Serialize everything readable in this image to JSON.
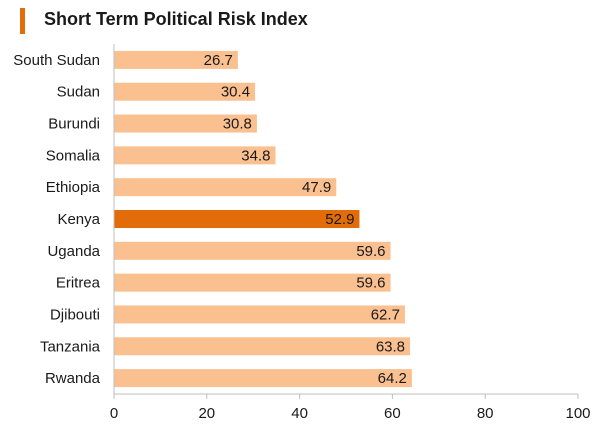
{
  "colors": {
    "bar": "#FAC090",
    "highlight": "#E36C0A",
    "title_marker": "#E36C0A",
    "axis": "#bfbfbf"
  },
  "chart_data": {
    "type": "bar",
    "orientation": "horizontal",
    "title": "Short Term Political Risk Index",
    "categories": [
      "South Sudan",
      "Sudan",
      "Burundi",
      "Somalia",
      "Ethiopia",
      "Kenya",
      "Uganda",
      "Eritrea",
      "Djibouti",
      "Tanzania",
      "Rwanda"
    ],
    "values": [
      26.7,
      30.4,
      30.8,
      34.8,
      47.9,
      52.9,
      59.6,
      59.6,
      62.7,
      63.8,
      64.2
    ],
    "highlight_category": "Kenya",
    "xlim": [
      0,
      100
    ],
    "xticks": [
      0,
      20,
      40,
      60,
      80,
      100
    ],
    "grid": false,
    "legend": "none"
  }
}
